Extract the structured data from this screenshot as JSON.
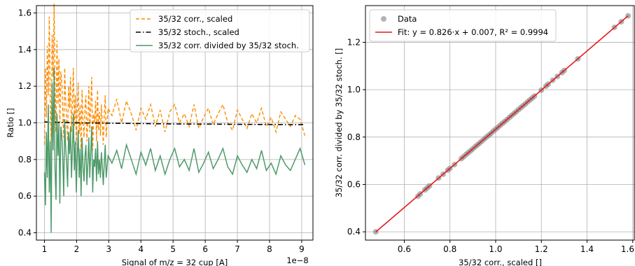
{
  "chart_data": [
    {
      "type": "line",
      "xlabel": "Signal of m/z = 32 cup [A]",
      "ylabel": "Ratio []",
      "x_offset_label": "1e−8",
      "xlim": [
        0.75,
        9.35
      ],
      "ylim": [
        0.36,
        1.64
      ],
      "x_ticks": [
        "1",
        "2",
        "3",
        "4",
        "5",
        "6",
        "7",
        "8",
        "9"
      ],
      "y_ticks": [
        "0.4",
        "0.6",
        "0.8",
        "1.0",
        "1.2",
        "1.4",
        "1.6"
      ],
      "grid": true,
      "legend_position": "top-right",
      "series": [
        {
          "name": "35/32 corr., scaled",
          "color": "#ff8c00",
          "style": "dashed",
          "x": [
            1.0,
            1.03,
            1.06,
            1.09,
            1.12,
            1.15,
            1.18,
            1.21,
            1.24,
            1.27,
            1.3,
            1.33,
            1.36,
            1.39,
            1.42,
            1.45,
            1.48,
            1.51,
            1.54,
            1.57,
            1.6,
            1.63,
            1.66,
            1.69,
            1.72,
            1.75,
            1.78,
            1.81,
            1.84,
            1.87,
            1.9,
            1.93,
            1.96,
            1.99,
            2.02,
            2.05,
            2.08,
            2.11,
            2.14,
            2.17,
            2.2,
            2.23,
            2.26,
            2.29,
            2.32,
            2.35,
            2.38,
            2.41,
            2.44,
            2.47,
            2.5,
            2.53,
            2.56,
            2.59,
            2.62,
            2.65,
            2.68,
            2.71,
            2.74,
            2.77,
            2.8,
            2.83,
            2.86,
            2.89,
            2.92,
            2.95,
            2.98,
            3.1,
            3.25,
            3.4,
            3.55,
            3.7,
            3.85,
            4.0,
            4.15,
            4.3,
            4.45,
            4.6,
            4.75,
            4.9,
            5.05,
            5.2,
            5.35,
            5.5,
            5.65,
            5.8,
            5.95,
            6.1,
            6.25,
            6.4,
            6.55,
            6.7,
            6.85,
            7.0,
            7.15,
            7.3,
            7.45,
            7.6,
            7.75,
            7.9,
            8.05,
            8.2,
            8.35,
            8.5,
            8.65,
            8.8,
            8.95,
            9.1
          ],
          "values": [
            0.88,
            1.3,
            1.03,
            1.42,
            1.15,
            1.58,
            1.1,
            0.9,
            1.48,
            1.25,
            1.65,
            1.2,
            0.95,
            1.45,
            1.1,
            1.35,
            1.0,
            1.28,
            1.22,
            1.05,
            0.92,
            1.3,
            1.12,
            1.02,
            0.9,
            1.2,
            1.08,
            1.25,
            0.95,
            1.1,
            1.3,
            0.98,
            1.15,
            0.88,
            1.05,
            1.22,
            0.94,
            1.1,
            0.86,
            1.18,
            1.0,
            0.92,
            1.08,
            1.15,
            0.9,
            1.02,
            1.2,
            0.95,
            1.1,
            1.25,
            0.85,
            1.05,
            1.0,
            1.12,
            0.9,
            1.18,
            0.96,
            1.06,
            0.93,
            1.1,
            1.0,
            0.88,
            1.05,
            1.15,
            0.92,
            1.0,
            1.08,
            1.04,
            1.13,
            1.0,
            1.12,
            1.05,
            0.96,
            1.08,
            1.02,
            1.1,
            0.98,
            1.07,
            0.95,
            1.06,
            1.1,
            1.0,
            1.05,
            0.98,
            1.1,
            0.97,
            1.03,
            1.08,
            0.99,
            1.05,
            1.1,
            1.0,
            0.96,
            1.07,
            1.02,
            0.97,
            1.05,
            1.0,
            1.08,
            0.98,
            1.03,
            0.95,
            1.06,
            1.02,
            0.98,
            1.04,
            1.02,
            0.93
          ]
        },
        {
          "name": "35/32 stoch., scaled",
          "color": "#000000",
          "style": "dashdot",
          "x": [
            1.0,
            2.0,
            3.0,
            4.0,
            5.0,
            6.0,
            7.0,
            8.0,
            9.1
          ],
          "values": [
            1.005,
            1.0,
            0.998,
            0.996,
            0.994,
            0.993,
            0.992,
            0.991,
            0.99
          ]
        },
        {
          "name": "35/32 corr. divided by 35/32 stoch.",
          "color": "#4e9a6a",
          "style": "solid",
          "x": [
            1.0,
            1.03,
            1.06,
            1.09,
            1.12,
            1.15,
            1.18,
            1.21,
            1.24,
            1.27,
            1.3,
            1.33,
            1.36,
            1.39,
            1.42,
            1.45,
            1.48,
            1.51,
            1.54,
            1.57,
            1.6,
            1.63,
            1.66,
            1.69,
            1.72,
            1.75,
            1.78,
            1.81,
            1.84,
            1.87,
            1.9,
            1.93,
            1.96,
            1.99,
            2.02,
            2.05,
            2.08,
            2.11,
            2.14,
            2.17,
            2.2,
            2.23,
            2.26,
            2.29,
            2.32,
            2.35,
            2.38,
            2.41,
            2.44,
            2.47,
            2.5,
            2.53,
            2.56,
            2.59,
            2.62,
            2.65,
            2.68,
            2.71,
            2.74,
            2.77,
            2.8,
            2.83,
            2.86,
            2.89,
            2.92,
            2.95,
            2.98,
            3.1,
            3.25,
            3.4,
            3.55,
            3.7,
            3.85,
            4.0,
            4.15,
            4.3,
            4.45,
            4.6,
            4.75,
            4.9,
            5.05,
            5.2,
            5.35,
            5.5,
            5.65,
            5.8,
            5.95,
            6.1,
            6.25,
            6.4,
            6.55,
            6.7,
            6.85,
            7.0,
            7.15,
            7.3,
            7.45,
            7.6,
            7.75,
            7.9,
            8.05,
            8.2,
            8.35,
            8.5,
            8.65,
            8.8,
            8.95,
            9.1
          ],
          "values": [
            0.73,
            0.55,
            0.95,
            0.7,
            1.1,
            0.62,
            0.9,
            0.4,
            1.22,
            0.85,
            1.3,
            0.75,
            0.58,
            1.05,
            0.82,
            1.0,
            0.56,
            0.98,
            0.93,
            0.8,
            0.6,
            1.02,
            0.86,
            0.78,
            0.65,
            0.95,
            0.83,
            0.98,
            0.7,
            0.85,
            1.05,
            0.74,
            0.9,
            0.62,
            0.8,
            0.96,
            0.7,
            0.86,
            0.6,
            0.92,
            0.76,
            0.68,
            0.82,
            0.88,
            0.66,
            0.78,
            0.92,
            0.7,
            0.84,
            0.98,
            0.62,
            0.8,
            0.76,
            0.86,
            0.68,
            0.9,
            0.72,
            0.8,
            0.7,
            0.84,
            0.76,
            0.66,
            0.78,
            0.88,
            0.7,
            0.76,
            0.82,
            0.78,
            0.85,
            0.75,
            0.88,
            0.8,
            0.72,
            0.84,
            0.77,
            0.86,
            0.74,
            0.82,
            0.72,
            0.8,
            0.86,
            0.76,
            0.8,
            0.74,
            0.86,
            0.73,
            0.78,
            0.84,
            0.75,
            0.8,
            0.86,
            0.76,
            0.72,
            0.82,
            0.77,
            0.73,
            0.8,
            0.75,
            0.85,
            0.74,
            0.78,
            0.72,
            0.82,
            0.77,
            0.74,
            0.8,
            0.86,
            0.77
          ]
        }
      ]
    },
    {
      "type": "scatter",
      "xlabel": "35/32 corr., scaled []",
      "ylabel": "35/32 corr. divided by 35/32 stoch. []",
      "xlim": [
        0.43,
        1.61
      ],
      "ylim": [
        0.365,
        1.355
      ],
      "x_ticks": [
        "0.6",
        "0.8",
        "1.0",
        "1.2",
        "1.4",
        "1.6"
      ],
      "y_ticks": [
        "0.4",
        "0.6",
        "0.8",
        "1.0",
        "1.2"
      ],
      "grid": true,
      "legend_position": "top-left",
      "series": [
        {
          "name": "Data",
          "color": "#808080",
          "x": [
            0.475,
            0.66,
            0.67,
            0.69,
            0.7,
            0.71,
            0.75,
            0.77,
            0.79,
            0.8,
            0.82,
            0.85,
            0.86,
            0.87,
            0.88,
            0.89,
            0.9,
            0.91,
            0.92,
            0.93,
            0.94,
            0.95,
            0.96,
            0.97,
            0.98,
            0.99,
            1.0,
            1.01,
            1.02,
            1.03,
            1.04,
            1.05,
            1.06,
            1.07,
            1.08,
            1.09,
            1.1,
            1.11,
            1.12,
            1.13,
            1.14,
            1.15,
            1.16,
            1.17,
            1.2,
            1.22,
            1.23,
            1.25,
            1.27,
            1.29,
            1.3,
            1.36,
            1.52,
            1.55,
            1.58
          ],
          "y": [
            0.4,
            0.55,
            0.56,
            0.577,
            0.585,
            0.594,
            0.627,
            0.643,
            0.66,
            0.668,
            0.684,
            0.709,
            0.717,
            0.726,
            0.734,
            0.742,
            0.75,
            0.759,
            0.767,
            0.775,
            0.783,
            0.792,
            0.8,
            0.808,
            0.816,
            0.825,
            0.833,
            0.841,
            0.85,
            0.858,
            0.866,
            0.874,
            0.883,
            0.891,
            0.899,
            0.907,
            0.916,
            0.924,
            0.932,
            0.94,
            0.949,
            0.957,
            0.965,
            0.973,
            0.998,
            1.015,
            1.023,
            1.04,
            1.056,
            1.072,
            1.081,
            1.13,
            1.263,
            1.287,
            1.312
          ]
        }
      ],
      "fit": {
        "name": "Fit: y = 0.826·x + 0.007, R² = 0.9994",
        "color": "#e41a1c",
        "slope": 0.826,
        "intercept": 0.007,
        "x_range": [
          0.475,
          1.58
        ]
      }
    }
  ]
}
